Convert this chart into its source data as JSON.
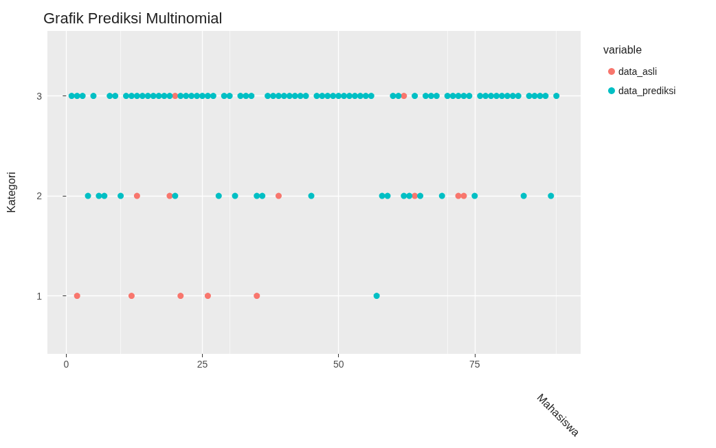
{
  "chart_data": {
    "type": "scatter",
    "title": "Grafik Prediksi Multinomial",
    "xlabel": "Mahasiswa",
    "ylabel": "Kategori",
    "legend_title": "variable",
    "x": [
      1,
      2,
      3,
      4,
      5,
      6,
      7,
      8,
      9,
      10,
      11,
      12,
      13,
      14,
      15,
      16,
      17,
      18,
      19,
      20,
      21,
      22,
      23,
      24,
      25,
      26,
      27,
      28,
      29,
      30,
      31,
      32,
      33,
      34,
      35,
      36,
      37,
      38,
      39,
      40,
      41,
      42,
      43,
      44,
      45,
      46,
      47,
      48,
      49,
      50,
      51,
      52,
      53,
      54,
      55,
      56,
      57,
      58,
      59,
      60,
      61,
      62,
      63,
      64,
      65,
      66,
      67,
      68,
      69,
      70,
      71,
      72,
      73,
      74,
      75,
      76,
      77,
      78,
      79,
      80,
      81,
      82,
      83,
      84,
      85,
      86,
      87,
      88,
      89,
      90
    ],
    "series": [
      {
        "name": "data_asli",
        "color": "#f8766d",
        "values": [
          null,
          1,
          null,
          null,
          null,
          null,
          null,
          null,
          null,
          null,
          null,
          1,
          2,
          null,
          null,
          null,
          null,
          null,
          2,
          3,
          1,
          null,
          null,
          null,
          null,
          1,
          null,
          null,
          null,
          null,
          null,
          null,
          null,
          null,
          1,
          null,
          null,
          null,
          2,
          null,
          null,
          null,
          null,
          null,
          null,
          null,
          null,
          null,
          null,
          null,
          null,
          null,
          null,
          null,
          null,
          null,
          null,
          null,
          null,
          null,
          null,
          3,
          null,
          2,
          null,
          null,
          null,
          null,
          null,
          null,
          null,
          2,
          2,
          null,
          null,
          null,
          null,
          null,
          null,
          null,
          null,
          null,
          null,
          null,
          null,
          null,
          null,
          null,
          null,
          null
        ]
      },
      {
        "name": "data_prediksi",
        "color": "#00bfc4",
        "values": [
          3,
          3,
          3,
          2,
          3,
          2,
          2,
          3,
          3,
          2,
          3,
          3,
          3,
          3,
          3,
          3,
          3,
          3,
          3,
          2,
          3,
          3,
          3,
          3,
          3,
          3,
          3,
          2,
          3,
          3,
          2,
          3,
          3,
          3,
          2,
          2,
          3,
          3,
          3,
          3,
          3,
          3,
          3,
          3,
          2,
          3,
          3,
          3,
          3,
          3,
          3,
          3,
          3,
          3,
          3,
          3,
          1,
          2,
          2,
          3,
          3,
          2,
          2,
          3,
          2,
          3,
          3,
          3,
          2,
          3,
          3,
          3,
          3,
          3,
          2,
          3,
          3,
          3,
          3,
          3,
          3,
          3,
          3,
          2,
          3,
          3,
          3,
          3,
          2,
          3
        ]
      }
    ],
    "xlim": [
      -3.45,
      94.45
    ],
    "ylim": [
      0.42,
      3.65
    ],
    "xticks": [
      0,
      25,
      50,
      75
    ],
    "yticks": [
      1,
      2,
      3
    ],
    "grid": true,
    "legend": "right",
    "marker": "circle"
  }
}
